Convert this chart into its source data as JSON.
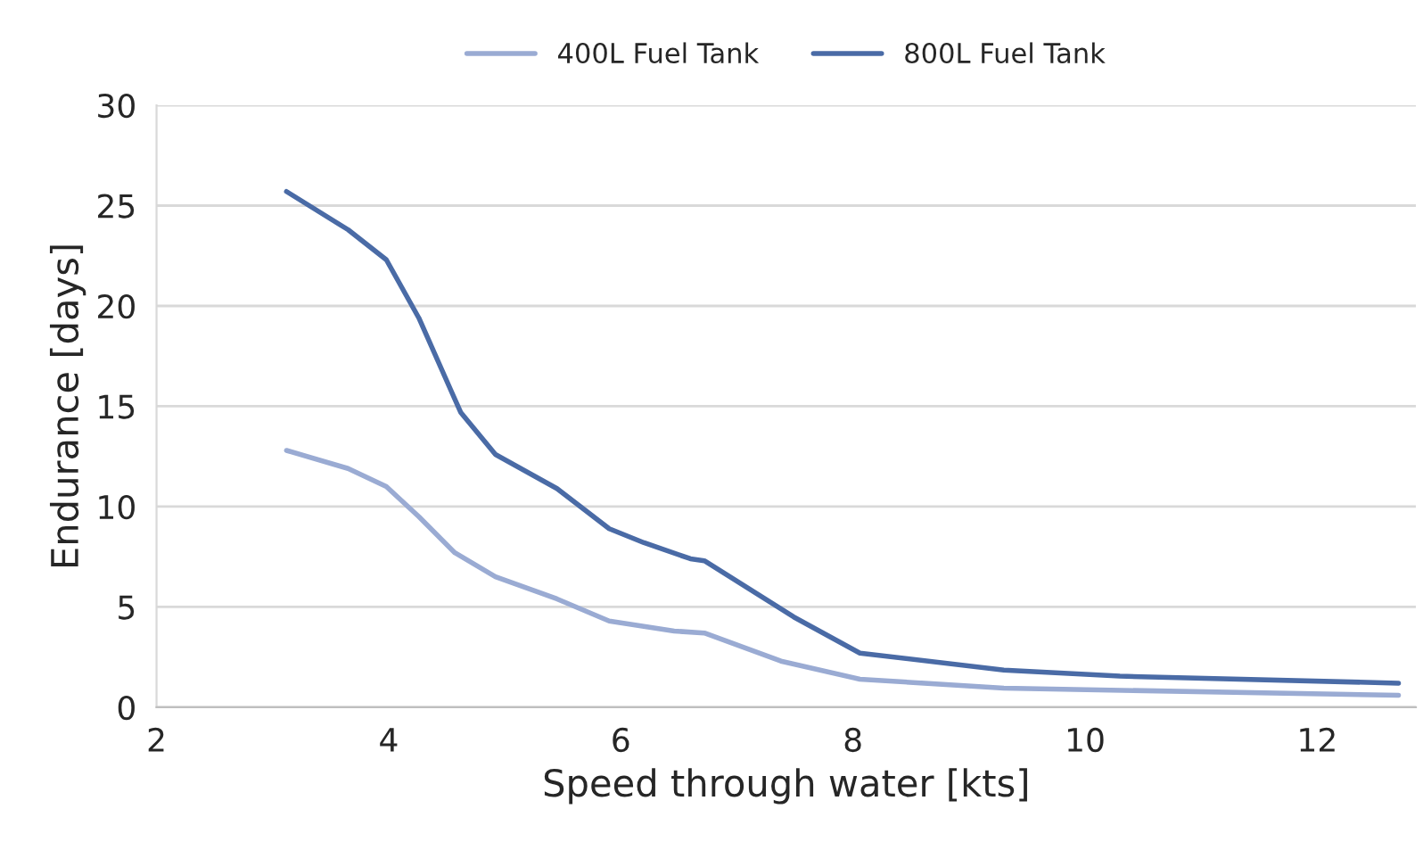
{
  "chart_data": {
    "type": "line",
    "xlabel": "Speed through water [kts]",
    "ylabel": "Endurance [days]",
    "xlim": [
      2,
      12.85
    ],
    "xticks": [
      2,
      4,
      6,
      8,
      10,
      12
    ],
    "ylim": [
      0,
      30
    ],
    "yticks": [
      0,
      5,
      10,
      15,
      20,
      25,
      30
    ],
    "grid": "y",
    "legend": "top",
    "marker": "none",
    "line_style": "solid",
    "series": [
      {
        "name": "400L Fuel Tank",
        "color": "#9aabd3",
        "x": [
          3.12,
          3.65,
          3.98,
          4.26,
          4.57,
          4.92,
          5.45,
          5.9,
          6.46,
          6.72,
          7.38,
          8.06,
          9.3,
          12.7
        ],
        "values": [
          12.8,
          11.9,
          11.0,
          9.5,
          7.7,
          6.5,
          5.4,
          4.3,
          3.8,
          3.7,
          2.3,
          1.4,
          0.95,
          0.6
        ]
      },
      {
        "name": "800L Fuel Tank",
        "color": "#4a6ba6",
        "x": [
          3.12,
          3.65,
          3.98,
          4.26,
          4.62,
          4.92,
          5.45,
          5.9,
          6.2,
          6.6,
          6.72,
          7.49,
          8.06,
          9.3,
          10.3,
          12.7
        ],
        "values": [
          25.7,
          23.8,
          22.3,
          19.4,
          14.7,
          12.6,
          10.9,
          8.9,
          8.2,
          7.4,
          7.3,
          4.5,
          2.7,
          1.85,
          1.55,
          1.2
        ]
      }
    ]
  }
}
